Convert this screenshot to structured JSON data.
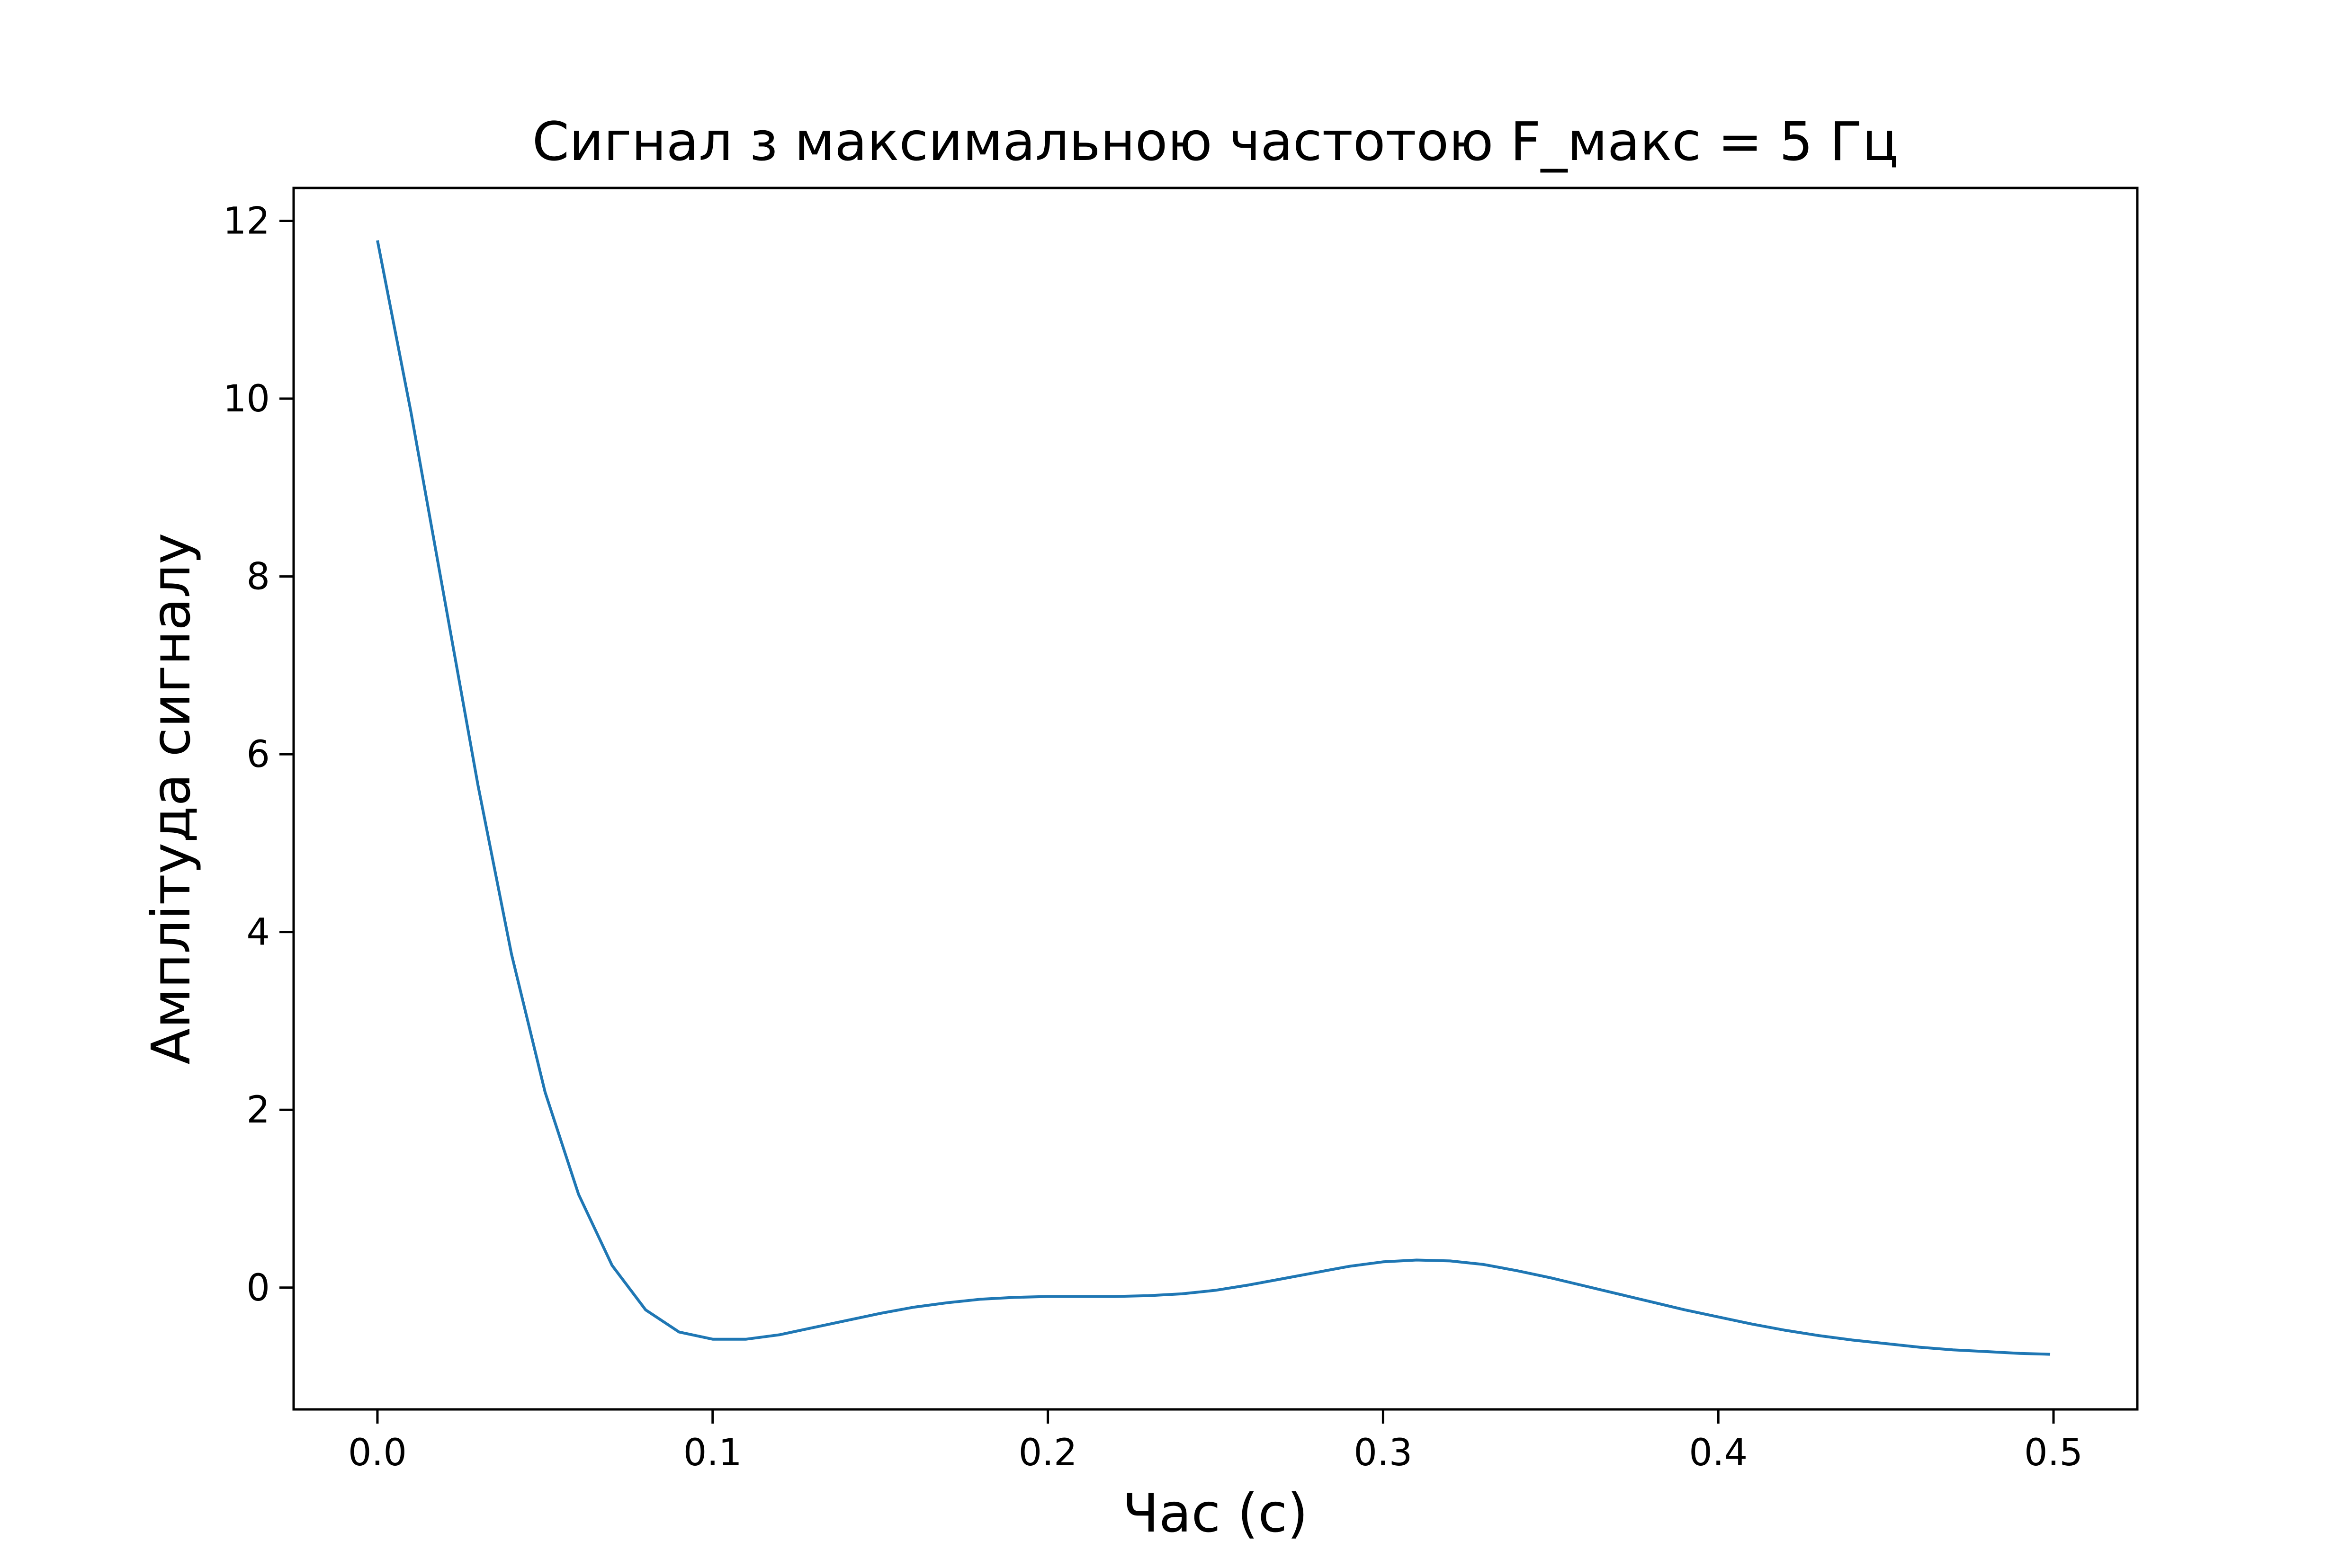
{
  "chart_data": {
    "type": "line",
    "title": "Сигнал з максимальною частотою F_макс = 5 Гц",
    "xlabel": "Час (с)",
    "ylabel": "Амплітуда сигналу",
    "xlim": [
      -0.025,
      0.525
    ],
    "ylim": [
      -1.37,
      12.37
    ],
    "xticks": [
      "0.0",
      "0.1",
      "0.2",
      "0.3",
      "0.4",
      "0.5"
    ],
    "yticks": [
      "0",
      "2",
      "4",
      "6",
      "8",
      "10",
      "12"
    ],
    "grid": false,
    "legend": "none",
    "series": [
      {
        "color": "#1f77b4",
        "x": [
          0.0,
          0.01,
          0.02,
          0.03,
          0.04,
          0.05,
          0.06,
          0.07,
          0.08,
          0.09,
          0.1,
          0.11,
          0.12,
          0.13,
          0.14,
          0.15,
          0.16,
          0.17,
          0.18,
          0.19,
          0.2,
          0.21,
          0.22,
          0.23,
          0.24,
          0.25,
          0.26,
          0.27,
          0.28,
          0.29,
          0.3,
          0.31,
          0.32,
          0.33,
          0.34,
          0.35,
          0.36,
          0.37,
          0.38,
          0.39,
          0.4,
          0.41,
          0.42,
          0.43,
          0.44,
          0.45,
          0.46,
          0.47,
          0.48,
          0.49,
          0.499
        ],
        "y": [
          11.78,
          9.85,
          7.75,
          5.65,
          3.75,
          2.2,
          1.05,
          0.25,
          -0.25,
          -0.5,
          -0.58,
          -0.58,
          -0.53,
          -0.45,
          -0.37,
          -0.29,
          -0.22,
          -0.17,
          -0.13,
          -0.11,
          -0.1,
          -0.1,
          -0.1,
          -0.09,
          -0.07,
          -0.03,
          0.03,
          0.1,
          0.17,
          0.24,
          0.29,
          0.31,
          0.3,
          0.26,
          0.19,
          0.11,
          0.02,
          -0.07,
          -0.16,
          -0.25,
          -0.33,
          -0.41,
          -0.48,
          -0.54,
          -0.59,
          -0.63,
          -0.67,
          -0.7,
          -0.72,
          -0.74,
          -0.75
        ]
      }
    ]
  }
}
